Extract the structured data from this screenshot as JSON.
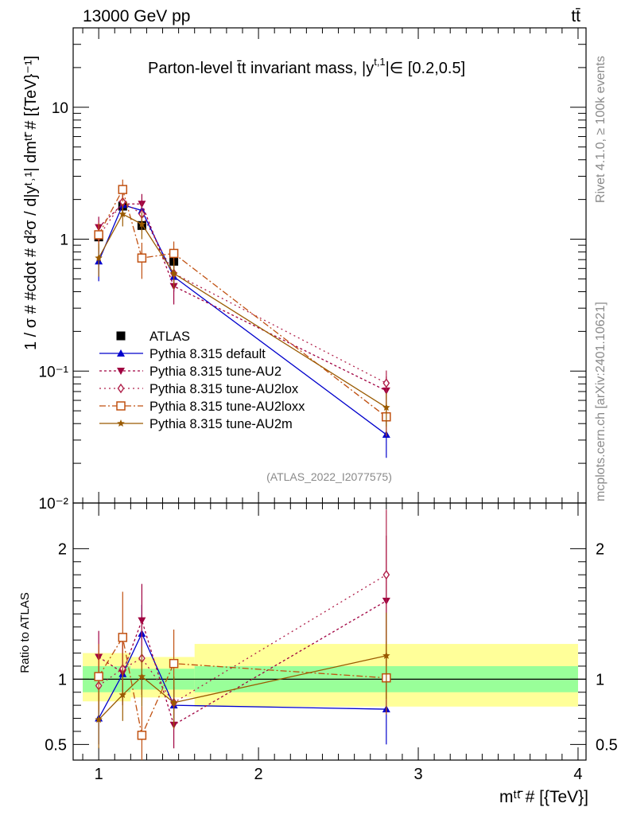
{
  "header": {
    "left": "13000 GeV pp",
    "right": "tt̄"
  },
  "side_labels": {
    "rivet": "Rivet 4.1.0, ≥ 100k events",
    "mcplots": "mcplots.cern.ch [arXiv:2401.10621]"
  },
  "chart_data": [
    {
      "type": "line",
      "panel": "main",
      "title": "Parton-level t̄t invariant mass, |y",
      "title_sup": "t,1",
      "title_tail": "|∈ [0.2,0.5]",
      "ylabel": "1 / σ # #cdot # d²σ / d|yᵗ˒¹| dmᵗᵗ̄ # [{TeV}⁻¹]",
      "yscale": "log",
      "ylim": [
        0.01,
        40
      ],
      "xlim": [
        0.84,
        4.05
      ],
      "ytick_labels": [
        "10⁻²",
        "10⁻¹",
        "1",
        "10"
      ],
      "ytick_values": [
        0.01,
        0.1,
        1,
        10
      ],
      "watermark": "(ATLAS_2022_I2077575)",
      "x": [
        1.0,
        1.15,
        1.27,
        1.47,
        2.8
      ],
      "series": [
        {
          "name": "ATLAS",
          "color": "#000000",
          "marker": "square-filled",
          "dash": "none",
          "values": [
            1.04,
            1.78,
            1.27,
            0.68,
            0.045
          ],
          "err": [
            0.08,
            0.12,
            0.1,
            0.05,
            0.004
          ]
        },
        {
          "name": "Pythia 8.315 default",
          "color": "#0000cc",
          "marker": "triangle-up",
          "dash": "solid",
          "values": [
            0.68,
            1.82,
            1.65,
            0.52,
            0.033
          ],
          "err": [
            0.2,
            0.3,
            0.3,
            0.12,
            0.011
          ]
        },
        {
          "name": "Pythia 8.315 tune-AU2",
          "color": "#a00040",
          "marker": "triangle-down",
          "dash": "3,3",
          "values": [
            1.23,
            1.85,
            1.85,
            0.44,
            0.071
          ],
          "err": [
            0.25,
            0.35,
            0.35,
            0.12,
            0.02
          ]
        },
        {
          "name": "Pythia 8.315 tune-AU2lox",
          "color": "#b0204a",
          "marker": "diamond-open",
          "dash": "2,4",
          "values": [
            1.05,
            1.92,
            1.55,
            0.55,
            0.081
          ],
          "err": [
            0.25,
            0.35,
            0.35,
            0.14,
            0.02
          ]
        },
        {
          "name": "Pythia 8.315 tune-AU2loxx",
          "color": "#c05010",
          "marker": "square-open",
          "dash": "8,3,2,3",
          "values": [
            1.08,
            2.38,
            0.72,
            0.78,
            0.045
          ],
          "err": [
            0.25,
            0.45,
            0.22,
            0.18,
            0.013
          ]
        },
        {
          "name": "Pythia 8.315 tune-AU2m",
          "color": "#9a5a00",
          "marker": "star",
          "dash": "solid",
          "values": [
            0.72,
            1.55,
            1.3,
            0.55,
            0.053
          ],
          "err": [
            0.2,
            0.3,
            0.3,
            0.13,
            0.015
          ]
        }
      ]
    },
    {
      "type": "line",
      "panel": "ratio",
      "ylabel": "Ratio to ATLAS",
      "ylim": [
        0.38,
        2.35
      ],
      "xlim": [
        0.84,
        4.05
      ],
      "ytick_labels": [
        "0.5",
        "1",
        "2"
      ],
      "ytick_values": [
        0.5,
        1,
        2
      ],
      "xtick_labels": [
        "1",
        "2",
        "3",
        "4"
      ],
      "xtick_values": [
        1,
        2,
        3,
        4
      ],
      "xlabel": "mᵗᵗ̄ # [{TeV}]",
      "bands": {
        "edges": [
          0.9,
          1.2,
          1.6,
          4.0
        ],
        "green": [
          [
            0.9,
            1.1
          ],
          [
            0.92,
            1.08
          ],
          [
            0.9,
            1.1
          ]
        ],
        "yellow": [
          [
            0.83,
            1.2
          ],
          [
            0.86,
            1.17
          ],
          [
            0.79,
            1.27
          ]
        ]
      },
      "x": [
        1.0,
        1.15,
        1.27,
        1.47,
        2.8
      ],
      "series": [
        {
          "name": "Pythia 8.315 default",
          "values": [
            0.7,
            1.04,
            1.35,
            0.8,
            0.77
          ],
          "err": [
            0.2,
            0.2,
            0.22,
            0.14,
            0.27
          ]
        },
        {
          "name": "Pythia 8.315 tune-AU2",
          "values": [
            1.17,
            1.05,
            1.45,
            0.65,
            1.6
          ],
          "err": [
            0.2,
            0.25,
            0.28,
            0.18,
            0.5
          ]
        },
        {
          "name": "Pythia 8.315 tune-AU2lox",
          "values": [
            0.95,
            1.08,
            1.16,
            0.82,
            1.8
          ],
          "err": [
            0.2,
            0.25,
            0.28,
            0.2,
            0.5
          ]
        },
        {
          "name": "Pythia 8.315 tune-AU2loxx",
          "values": [
            1.02,
            1.32,
            0.57,
            1.12,
            1.01
          ],
          "err": [
            0.25,
            0.35,
            0.22,
            0.26,
            0.28
          ]
        },
        {
          "name": "Pythia 8.315 tune-AU2m",
          "values": [
            0.69,
            0.88,
            1.02,
            0.82,
            1.18
          ],
          "err": [
            0.22,
            0.2,
            0.23,
            0.2,
            0.33
          ]
        }
      ]
    }
  ]
}
